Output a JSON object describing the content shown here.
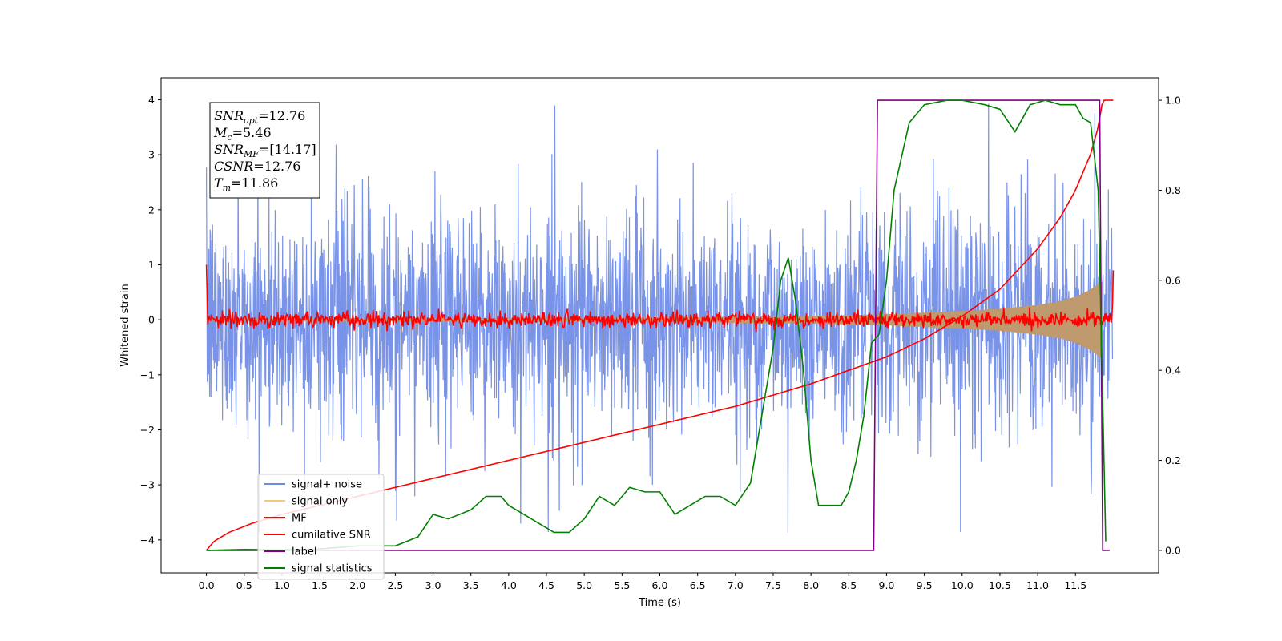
{
  "chart_data": {
    "type": "line",
    "xlabel": "Time (s)",
    "ylabel": "Whitened strain",
    "xlim": [
      -0.6,
      12.6
    ],
    "ylim": [
      -4.6,
      4.4
    ],
    "y2lim": [
      -0.05,
      1.05
    ],
    "x_ticks": [
      0.0,
      0.5,
      1.0,
      1.5,
      2.0,
      2.5,
      3.0,
      3.5,
      4.0,
      4.5,
      5.0,
      5.5,
      6.0,
      6.5,
      7.0,
      7.5,
      8.0,
      8.5,
      9.0,
      9.5,
      10.0,
      10.5,
      11.0,
      11.5
    ],
    "x_tick_labels": [
      "0.0",
      "0.5",
      "1.0",
      "1.5",
      "2.0",
      "2.5",
      "3.0",
      "3.5",
      "4.0",
      "4.5",
      "5.0",
      "5.5",
      "6.0",
      "6.5",
      "7.0",
      "7.5",
      "8.0",
      "8.5",
      "9.0",
      "9.5",
      "10.0",
      "10.5",
      "11.0",
      "11.5"
    ],
    "y_ticks": [
      -4,
      -3,
      -2,
      -1,
      0,
      1,
      2,
      3,
      4
    ],
    "y_tick_labels": [
      "−4",
      "−3",
      "−2",
      "−1",
      "0",
      "1",
      "2",
      "3",
      "4"
    ],
    "y2_ticks": [
      0.0,
      0.2,
      0.4,
      0.6,
      0.8,
      1.0
    ],
    "y2_tick_labels": [
      "0.0",
      "0.2",
      "0.4",
      "0.6",
      "0.8",
      "1.0"
    ],
    "colors": {
      "signal_noise": "#6d8ae6",
      "signal_only": "#f2c879",
      "signal_only_overlap": "#bf9a6e",
      "mf": "#ff0000",
      "cumulative_snr": "#ff0000",
      "label": "#800080",
      "signal_statistics": "#008000"
    },
    "series": [
      {
        "name": "signal+ noise",
        "axis": "left",
        "kind": "noise",
        "x_range": [
          0.0,
          11.99
        ],
        "amplitude_typical": 1.0,
        "amplitude_peak": 4.0
      },
      {
        "name": "signal only",
        "axis": "left",
        "kind": "chirp_envelope",
        "x": [
          0.0,
          6.0,
          8.0,
          9.0,
          10.0,
          10.5,
          11.0,
          11.3,
          11.5,
          11.7,
          11.8,
          11.86
        ],
        "envelope": [
          0.02,
          0.04,
          0.07,
          0.1,
          0.16,
          0.2,
          0.27,
          0.34,
          0.42,
          0.55,
          0.65,
          0.7
        ]
      },
      {
        "name": "MF",
        "axis": "left",
        "kind": "mf_noise",
        "x_range": [
          0.0,
          12.0
        ],
        "amplitude_typical": 0.07,
        "start_value": 1.0,
        "end_value": 0.9
      },
      {
        "name": "cumilative SNR",
        "axis": "right",
        "x": [
          0.0,
          0.1,
          0.3,
          0.6,
          1.0,
          2.0,
          3.0,
          4.0,
          5.0,
          6.0,
          7.0,
          7.5,
          8.0,
          8.5,
          9.0,
          9.5,
          10.0,
          10.5,
          11.0,
          11.3,
          11.5,
          11.7,
          11.8,
          11.86,
          12.0
        ],
        "values": [
          0.0,
          0.02,
          0.04,
          0.06,
          0.08,
          0.12,
          0.16,
          0.2,
          0.24,
          0.28,
          0.32,
          0.345,
          0.37,
          0.4,
          0.43,
          0.47,
          0.52,
          0.58,
          0.67,
          0.74,
          0.8,
          0.88,
          0.94,
          1.0,
          1.0
        ]
      },
      {
        "name": "label",
        "axis": "right",
        "x": [
          0.0,
          8.83,
          8.88,
          11.82,
          11.86,
          11.95
        ],
        "values": [
          0.0,
          0.0,
          1.0,
          1.0,
          0.0,
          0.0
        ]
      },
      {
        "name": "signal statistics",
        "axis": "right",
        "x": [
          0.0,
          0.5,
          1.0,
          1.5,
          2.0,
          2.5,
          2.8,
          3.0,
          3.2,
          3.5,
          3.7,
          3.9,
          4.0,
          4.2,
          4.4,
          4.6,
          4.8,
          5.0,
          5.2,
          5.4,
          5.6,
          5.8,
          6.0,
          6.2,
          6.4,
          6.6,
          6.8,
          7.0,
          7.2,
          7.35,
          7.5,
          7.6,
          7.7,
          7.8,
          7.9,
          8.0,
          8.1,
          8.2,
          8.3,
          8.4,
          8.5,
          8.6,
          8.7,
          8.8,
          8.9,
          9.0,
          9.1,
          9.3,
          9.5,
          9.8,
          10.0,
          10.3,
          10.5,
          10.7,
          10.9,
          11.1,
          11.3,
          11.5,
          11.6,
          11.7,
          11.8,
          11.9
        ],
        "values": [
          0.0,
          0.002,
          0.001,
          0.003,
          0.01,
          0.01,
          0.03,
          0.08,
          0.07,
          0.09,
          0.12,
          0.12,
          0.1,
          0.08,
          0.06,
          0.04,
          0.04,
          0.07,
          0.12,
          0.1,
          0.14,
          0.13,
          0.13,
          0.08,
          0.1,
          0.12,
          0.12,
          0.1,
          0.15,
          0.3,
          0.45,
          0.6,
          0.65,
          0.55,
          0.4,
          0.2,
          0.1,
          0.1,
          0.1,
          0.1,
          0.13,
          0.2,
          0.3,
          0.46,
          0.48,
          0.6,
          0.8,
          0.95,
          0.99,
          1.0,
          1.0,
          0.99,
          0.98,
          0.93,
          0.99,
          1.0,
          0.99,
          0.99,
          0.96,
          0.95,
          0.8,
          0.02
        ]
      }
    ],
    "legend": {
      "placement": "lower-left",
      "entries": [
        "signal+ noise",
        "signal only",
        "MF",
        "cumilative SNR",
        "label",
        "signal statistics"
      ]
    },
    "annotation": {
      "lines": [
        {
          "base": "SNR",
          "sub": "opt",
          "rest": "=12.76"
        },
        {
          "base": "M",
          "sub": "c",
          "rest": "=5.46"
        },
        {
          "base": "SNR",
          "sub": "MF",
          "rest": "=[14.17]"
        },
        {
          "base": "CSNR",
          "sub": "",
          "rest": "=12.76"
        },
        {
          "base": "T",
          "sub": "m",
          "rest": "=11.86"
        }
      ]
    }
  }
}
